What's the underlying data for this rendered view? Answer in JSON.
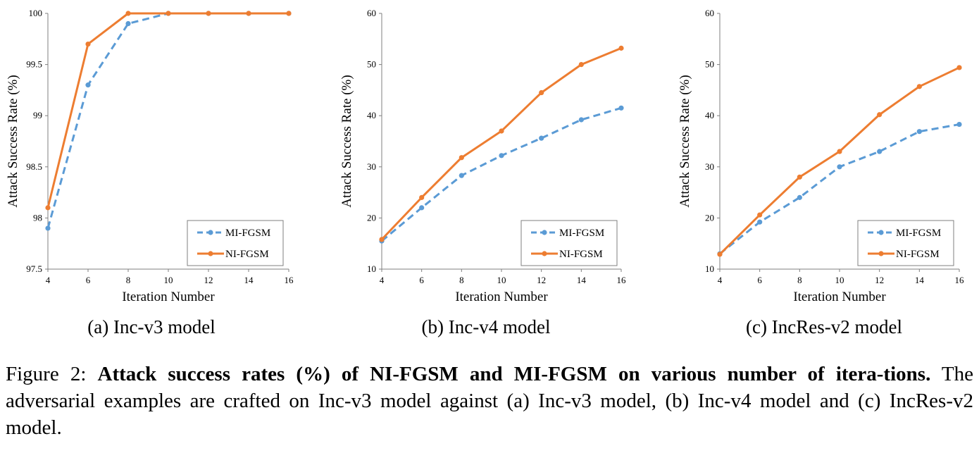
{
  "chart_data": [
    {
      "type": "line",
      "x": [
        4,
        6,
        8,
        10,
        12,
        14,
        16
      ],
      "xlabel": "Iteration Number",
      "ylabel": "Attack Success Rate (%)",
      "ylim": [
        97.5,
        100
      ],
      "yticks": [
        97.5,
        98,
        98.5,
        99,
        99.5,
        100
      ],
      "ytick_labels": [
        "97.5",
        "98",
        "98.5",
        "99",
        "99.5",
        "100"
      ],
      "legend_position": "bottom-right",
      "grid": false,
      "caption": "(a) Inc-v3 model",
      "series": [
        {
          "name": "MI-FGSM",
          "color": "#5B9BD5",
          "dashed": true,
          "values": [
            97.9,
            99.3,
            99.9,
            100,
            100,
            100,
            100
          ]
        },
        {
          "name": "NI-FGSM",
          "color": "#ED7D31",
          "dashed": false,
          "values": [
            98.1,
            99.7,
            100,
            100,
            100,
            100,
            100
          ]
        }
      ]
    },
    {
      "type": "line",
      "x": [
        4,
        6,
        8,
        10,
        12,
        14,
        16
      ],
      "xlabel": "Iteration Number",
      "ylabel": "Attack Success Rate (%)",
      "ylim": [
        10,
        60
      ],
      "yticks": [
        10,
        20,
        30,
        40,
        50,
        60
      ],
      "ytick_labels": [
        "10",
        "20",
        "30",
        "40",
        "50",
        "60"
      ],
      "legend_position": "bottom-right",
      "grid": false,
      "caption": "(b) Inc-v4 model",
      "series": [
        {
          "name": "MI-FGSM",
          "color": "#5B9BD5",
          "dashed": true,
          "values": [
            15.5,
            22.0,
            28.3,
            32.2,
            35.6,
            39.2,
            41.5
          ]
        },
        {
          "name": "NI-FGSM",
          "color": "#ED7D31",
          "dashed": false,
          "values": [
            15.8,
            24.0,
            31.8,
            37.0,
            44.5,
            50.0,
            53.2
          ]
        }
      ]
    },
    {
      "type": "line",
      "x": [
        4,
        6,
        8,
        10,
        12,
        14,
        16
      ],
      "xlabel": "Iteration Number",
      "ylabel": "Attack Success Rate (%)",
      "ylim": [
        10,
        60
      ],
      "yticks": [
        10,
        20,
        30,
        40,
        50,
        60
      ],
      "ytick_labels": [
        "10",
        "20",
        "30",
        "40",
        "50",
        "60"
      ],
      "legend_position": "bottom-right",
      "grid": false,
      "caption": "(c) IncRes-v2 model",
      "series": [
        {
          "name": "MI-FGSM",
          "color": "#5B9BD5",
          "dashed": true,
          "values": [
            13.0,
            19.2,
            24.0,
            30.0,
            33.0,
            36.9,
            38.3
          ]
        },
        {
          "name": "NI-FGSM",
          "color": "#ED7D31",
          "dashed": false,
          "values": [
            12.9,
            20.6,
            28.0,
            33.0,
            40.2,
            45.7,
            49.4
          ]
        }
      ]
    }
  ],
  "figure_caption": {
    "prefix": "Figure 2: ",
    "bold": "Attack success rates (%) of NI-FGSM and MI-FGSM on various number of itera-tions.",
    "rest": " The adversarial examples are crafted on Inc-v3 model against (a) Inc-v3 model, (b) Inc-v4 model and (c) IncRes-v2 model."
  }
}
